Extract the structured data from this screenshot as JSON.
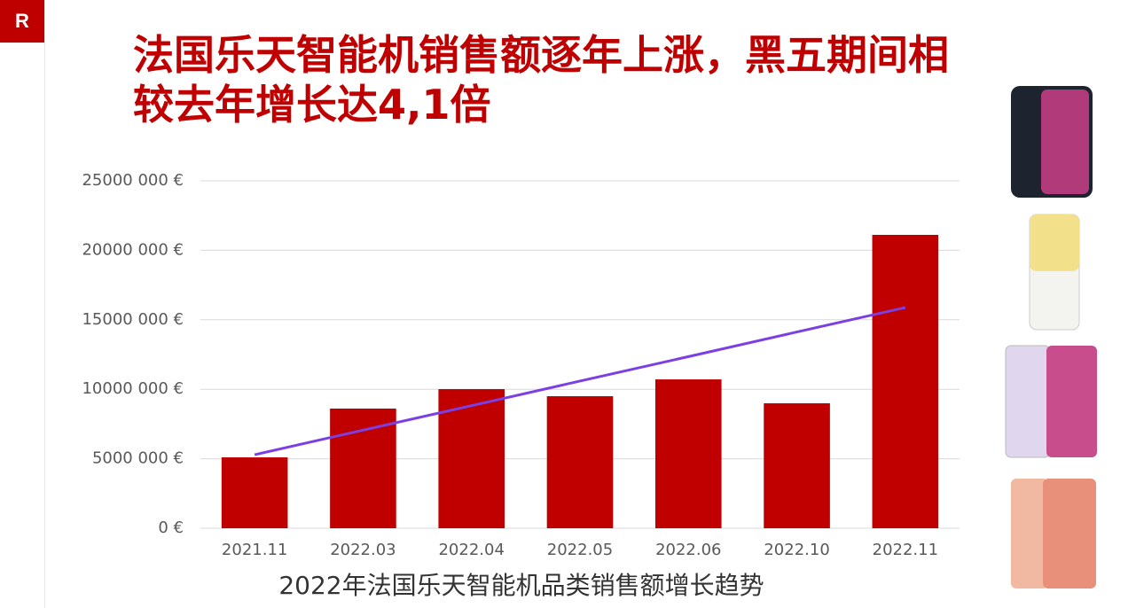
{
  "header": {
    "logo": "R",
    "title": "法国乐天智能机销售额逐年上涨，黑五期间相较去年增长达4,1倍"
  },
  "chart_data": {
    "type": "bar",
    "title": "2022年法国乐天智能机品类销售额增长趋势",
    "categories": [
      "2021.11",
      "2022.03",
      "2022.04",
      "2022.05",
      "2022.06",
      "2022.10",
      "2022.11"
    ],
    "series": [
      {
        "type": "bar",
        "color": "#c00000",
        "values": [
          5100000,
          8610000,
          10010000,
          9500000,
          10710000,
          8990000,
          21110000
        ]
      },
      {
        "type": "line",
        "color": "#7b3fe4",
        "values": [
          5290000,
          7060000,
          8820000,
          10590000,
          12350000,
          14120000,
          15880000
        ]
      }
    ],
    "ylim": [
      0,
      25000000
    ],
    "yticks": [
      {
        "value": 0,
        "label": "0 €"
      },
      {
        "value": 5000000,
        "label": "5000 000 €"
      },
      {
        "value": 10000000,
        "label": "10000 000 €"
      },
      {
        "value": 15000000,
        "label": "15000 000 €"
      },
      {
        "value": 20000000,
        "label": "20000 000 €"
      },
      {
        "value": 25000000,
        "label": "25000 000 €"
      }
    ],
    "grid": true
  }
}
